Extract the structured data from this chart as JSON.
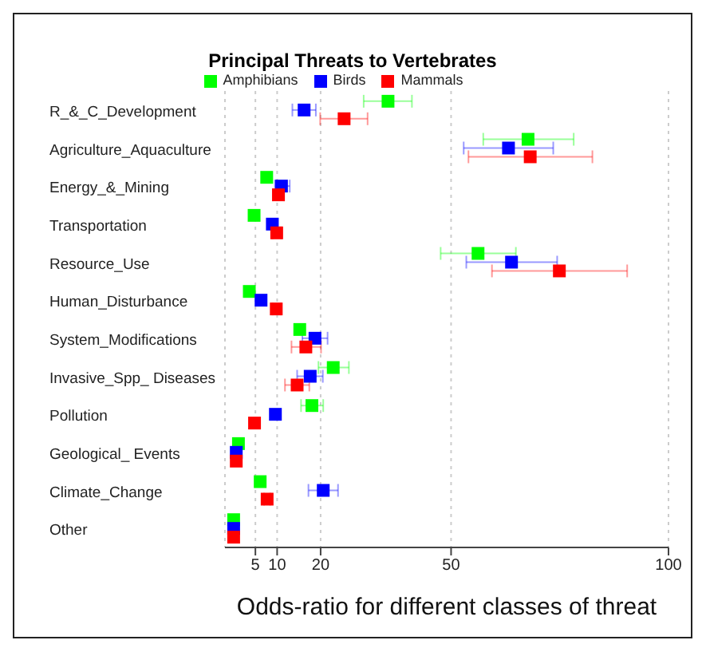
{
  "chart_data": {
    "type": "scatter",
    "title": "Principal Threats to Vertebrates",
    "xlabel": "Odds-ratio for different classes of threat",
    "orientation": "horizontal",
    "categories": [
      "R_&_C_Development",
      "Agriculture_Aquaculture",
      "Energy_&_Mining",
      "Transportation",
      "Resource_Use",
      "Human_Disturbance",
      "System_Modifications",
      "Invasive_Spp_ Diseases",
      "Pollution",
      "Geological_ Events",
      "Climate_Change",
      "Other"
    ],
    "series": [
      {
        "name": "Amphibians",
        "color": "#00ff00",
        "values": [
          35.5,
          67.7,
          7.6,
          4.7,
          56.2,
          3.6,
          15.2,
          22.9,
          18.0,
          1.1,
          6.1,
          0
        ],
        "errors": [
          [
            29.9,
            41.0
          ],
          [
            57.4,
            78.2
          ],
          null,
          null,
          [
            47.6,
            64.9
          ],
          null,
          null,
          [
            19.5,
            26.5
          ],
          [
            15.5,
            20.6
          ],
          null,
          null,
          null
        ]
      },
      {
        "name": "Birds",
        "color": "#0000ff",
        "values": [
          16.2,
          63.2,
          11.0,
          8.9,
          63.9,
          6.3,
          18.7,
          17.6,
          9.6,
          0.6,
          20.6,
          0
        ],
        "errors": [
          [
            13.5,
            18.9
          ],
          [
            52.9,
            73.5
          ],
          [
            9.5,
            12.9
          ],
          null,
          [
            53.5,
            74.4
          ],
          null,
          [
            15.8,
            21.6
          ],
          [
            14.6,
            20.5
          ],
          null,
          null,
          [
            17.2,
            24.0
          ],
          null
        ]
      },
      {
        "name": "Mammals",
        "color": "#ff0000",
        "values": [
          25.4,
          68.2,
          10.3,
          9.9,
          74.9,
          9.8,
          16.6,
          14.6,
          4.8,
          0.6,
          7.7,
          0
        ],
        "errors": [
          [
            19.9,
            30.8
          ],
          [
            54.0,
            82.5
          ],
          [
            9.0,
            11.6
          ],
          [
            9.0,
            10.9
          ],
          [
            59.4,
            90.5
          ],
          [
            9.0,
            10.8
          ],
          [
            13.3,
            20.1
          ],
          [
            11.8,
            17.4
          ],
          null,
          null,
          [
            7.0,
            8.4
          ],
          null
        ]
      }
    ],
    "xlim": [
      -2,
      100
    ],
    "xticks": [
      5,
      10,
      20,
      50,
      100
    ],
    "grid": "x",
    "legend": "top",
    "marker": "square"
  }
}
